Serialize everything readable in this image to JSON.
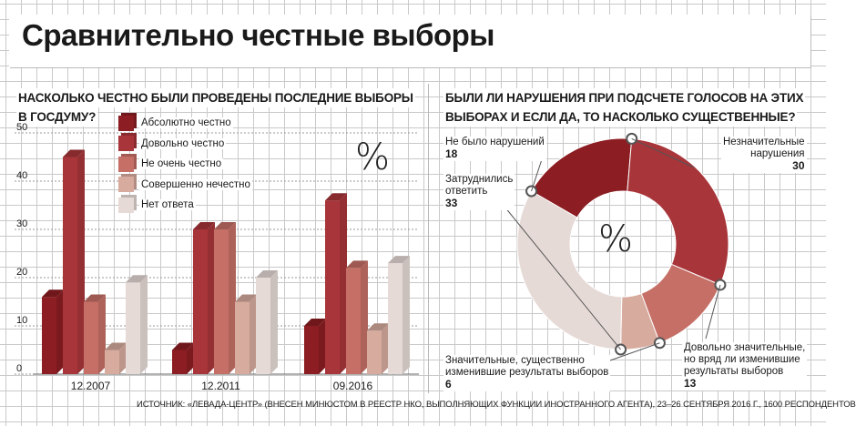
{
  "title": "Сравнительно честные выборы",
  "source": "ИСТОЧНИК: «ЛЕВАДА-ЦЕНТР» (ВНЕСЕН МИНЮСТОМ В РЕЕСТР НКО, ВЫПОЛНЯЮЩИХ ФУНКЦИИ ИНОСТРАННОГО АГЕНТА), 23–26 СЕНТЯБРЯ 2016 Г., 1600 РЕСПОНДЕНТОВ",
  "percent_symbol": "%",
  "colors": {
    "dark": "#8c1d22",
    "medium": "#a8353a",
    "light": "#c56f66",
    "pale": "#d7ab9e",
    "verypale": "#e6dad6"
  },
  "chart_data": [
    {
      "type": "bar",
      "title": "НАСКОЛЬКО ЧЕСТНО БЫЛИ ПРОВЕДЕНЫ ПОСЛЕДНИЕ ВЫБОРЫ В ГОСДУМУ?",
      "categories": [
        "12.2007",
        "12.2011",
        "09.2016"
      ],
      "ylim": [
        0,
        50
      ],
      "yticks": [
        "0",
        "10",
        "20",
        "30",
        "40",
        "50"
      ],
      "grid": true,
      "legend_position": "top-left",
      "series": [
        {
          "name": "Абсолютно честно",
          "values": [
            16,
            5,
            10
          ]
        },
        {
          "name": "Довольно честно",
          "values": [
            45,
            30,
            36
          ]
        },
        {
          "name": "Не очень честно",
          "values": [
            15,
            30,
            22
          ]
        },
        {
          "name": "Совершенно нечестно",
          "values": [
            5,
            15,
            9
          ]
        },
        {
          "name": "Нет ответа",
          "values": [
            19,
            20,
            23
          ]
        }
      ]
    },
    {
      "type": "pie",
      "title": "БЫЛИ ЛИ НАРУШЕНИЯ ПРИ ПОДСЧЕТЕ ГОЛОСОВ НА ЭТИХ ВЫБОРАХ И ЕСЛИ ДА, ТО НАСКОЛЬКО СУЩЕСТВЕННЫЕ?",
      "slices": [
        {
          "label": "Не было нарушений",
          "value": 18,
          "value_label": "18"
        },
        {
          "label": "Незначительные нарушения",
          "value": 30,
          "value_label": "30"
        },
        {
          "label": "Довольно значительные, но вряд ли изменившие результаты выборов",
          "value": 13,
          "value_label": "13"
        },
        {
          "label": "Значительные, существенно изменившие результаты выборов",
          "value": 6,
          "value_label": "6"
        },
        {
          "label": "Затруднились ответить",
          "value": 33,
          "value_label": "33"
        }
      ]
    }
  ],
  "annotations": {
    "none_l1": "Не было нарушений",
    "minor_l1": "Незначительные",
    "minor_l2": "нарушения",
    "hard_l1": "Затруднились",
    "hard_l2": "ответить",
    "sig_l1": "Значительные, существенно",
    "sig_l2": "изменившие результаты выборов",
    "fair_l1": "Довольно значительные,",
    "fair_l2": "но вряд ли изменившие",
    "fair_l3": "результаты выборов"
  },
  "headings": {
    "left_l1": "НАСКОЛЬКО ЧЕСТНО БЫЛИ ПРОВЕДЕНЫ ПОСЛЕДНИЕ ВЫБОРЫ",
    "left_l2": "В ГОСДУМУ?",
    "right_l1": "БЫЛИ ЛИ НАРУШЕНИЯ ПРИ ПОДСЧЕТЕ ГОЛОСОВ НА ЭТИХ",
    "right_l2": "ВЫБОРАХ И ЕСЛИ ДА, ТО НАСКОЛЬКО СУЩЕСТВЕННЫЕ?"
  }
}
